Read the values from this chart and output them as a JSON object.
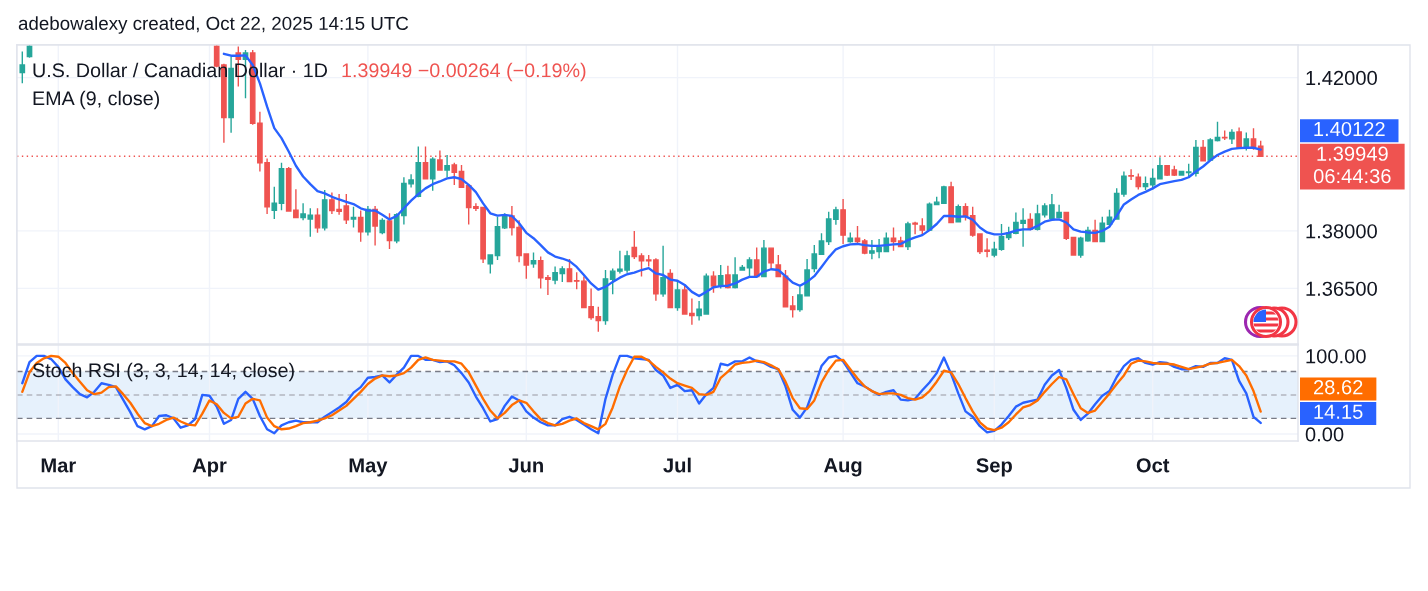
{
  "chart_data": [
    {
      "type": "candlestick",
      "title": "U.S. Dollar / Canadian Dollar · 1D",
      "subtitle": "1.39949 −0.00264 (−0.19%)",
      "annotations": [
        "adebowalexy created, Oct 22, 2025 14:15 UTC",
        "EMA (9, close)",
        "1.40122"
      ],
      "categories": [
        null,
        null,
        null,
        null,
        null,
        null,
        null,
        null,
        null,
        null,
        null,
        null,
        null,
        null,
        null,
        null,
        null,
        null,
        null,
        null,
        null,
        null,
        null,
        null,
        null,
        null,
        null,
        null,
        null,
        null,
        null,
        null,
        null,
        null,
        null,
        null,
        null,
        null,
        null,
        null,
        null,
        null,
        null,
        null,
        null,
        null,
        null,
        null,
        null,
        null,
        null,
        null,
        null,
        null,
        null,
        null,
        null,
        null,
        null,
        null,
        null,
        null,
        null,
        null,
        null,
        null,
        null,
        null,
        null,
        null,
        null,
        null,
        null,
        null,
        null,
        null,
        null,
        null,
        null,
        null,
        null,
        null,
        null,
        null,
        null,
        null,
        null,
        null,
        null,
        null,
        null,
        null,
        null,
        null,
        null,
        null,
        null,
        null,
        null,
        null,
        null,
        null,
        null,
        null,
        null,
        null,
        null,
        null,
        null,
        null,
        null,
        null,
        null,
        null,
        null,
        null,
        null,
        null,
        null,
        null,
        null,
        null,
        null,
        null,
        null,
        null,
        null,
        null,
        null,
        null,
        null,
        null,
        null,
        null,
        null,
        null,
        null,
        null,
        null,
        null,
        null,
        null,
        null,
        null,
        null,
        null,
        null,
        null,
        null,
        null,
        null,
        null,
        null,
        null,
        null,
        null,
        null,
        null,
        null,
        null,
        null,
        null,
        null,
        null,
        null,
        null,
        null,
        null,
        null,
        null,
        null,
        null,
        null
      ],
      "series": [
        {
          "type": "candlestick",
          "ohlc": [
            [
              1.4213,
              1.4268,
              1.4185,
              1.4233
            ],
            [
              1.4255,
              1.4284,
              1.4252,
              1.4281
            ],
            null,
            null,
            null,
            null,
            null,
            null,
            null,
            null,
            null,
            null,
            null,
            null,
            null,
            null,
            null,
            null,
            null,
            null,
            null,
            null,
            null,
            null,
            null,
            null,
            null,
            [
              1.4281,
              1.4284,
              1.4227,
              1.423
            ],
            [
              1.4233,
              1.4236,
              1.403,
              1.4096
            ],
            [
              1.4096,
              1.4255,
              1.4056,
              1.4224
            ],
            [
              1.4264,
              1.4281,
              1.4177,
              1.4248
            ],
            [
              1.4248,
              1.4272,
              1.4146,
              1.4264
            ],
            [
              1.4264,
              1.4272,
              1.4077,
              1.4081
            ],
            [
              1.4081,
              1.4111,
              1.3955,
              1.3978
            ],
            [
              1.3978,
              1.3989,
              1.3844,
              1.3863
            ],
            [
              1.3854,
              1.3915,
              1.3831,
              1.3872
            ],
            [
              1.3872,
              1.3978,
              1.3854,
              1.3962
            ],
            [
              1.3962,
              1.3967,
              1.385,
              1.3852
            ],
            [
              1.3854,
              1.3909,
              1.3833,
              1.3835
            ],
            [
              1.3835,
              1.3872,
              1.3828,
              1.3844
            ],
            [
              1.3831,
              1.3859,
              1.3785,
              1.3841
            ],
            [
              1.3841,
              1.3859,
              1.3795,
              1.3808
            ],
            [
              1.3808,
              1.3907,
              1.3801,
              1.3881
            ],
            [
              1.3881,
              1.39,
              1.3844,
              1.3853
            ],
            [
              1.3856,
              1.3896,
              1.3842,
              1.3851
            ],
            [
              1.3865,
              1.3896,
              1.3818,
              1.3829
            ],
            [
              1.3831,
              1.3863,
              1.3809,
              1.3835
            ],
            [
              1.3835,
              1.3853,
              1.3772,
              1.3798
            ],
            [
              1.3798,
              1.3865,
              1.3788,
              1.3856
            ],
            [
              1.3856,
              1.3865,
              1.3762,
              1.3813
            ],
            [
              1.3796,
              1.3833,
              1.3791,
              1.3827
            ],
            [
              1.3826,
              1.3846,
              1.3753,
              1.3775
            ],
            [
              1.3774,
              1.3846,
              1.3768,
              1.3842
            ],
            [
              1.384,
              1.394,
              1.3817,
              1.3924
            ],
            [
              1.3923,
              1.3948,
              1.3913,
              1.3933
            ],
            [
              1.389,
              1.402,
              1.3888,
              1.3978
            ],
            [
              1.3978,
              1.402,
              1.3935,
              1.3936
            ],
            [
              1.3936,
              1.3992,
              1.3905,
              1.3987
            ],
            [
              1.3985,
              1.401,
              1.3957,
              1.3959
            ],
            [
              1.3959,
              1.3998,
              1.394,
              1.397
            ],
            [
              1.3972,
              1.3978,
              1.392,
              1.3953
            ],
            [
              1.3955,
              1.3972,
              1.3912,
              1.3914
            ],
            [
              1.3918,
              1.392,
              1.3817,
              1.3861
            ],
            [
              1.3863,
              1.3872,
              1.3852,
              1.3859
            ],
            [
              1.3861,
              1.3863,
              1.3716,
              1.3727
            ],
            [
              1.3714,
              1.3739,
              1.3689,
              1.3737
            ],
            [
              1.3736,
              1.3837,
              1.3724,
              1.3811
            ],
            [
              1.3808,
              1.3846,
              1.3805,
              1.384
            ],
            [
              1.3839,
              1.3865,
              1.3788,
              1.3809
            ],
            [
              1.3809,
              1.3828,
              1.3718,
              1.3736
            ],
            [
              1.374,
              1.3742,
              1.3675,
              1.3711
            ],
            [
              1.3714,
              1.3744,
              1.3704,
              1.3722
            ],
            [
              1.3722,
              1.3733,
              1.365,
              1.3678
            ],
            [
              1.3678,
              1.3685,
              1.3633,
              1.3674
            ],
            [
              1.3672,
              1.3707,
              1.3661,
              1.3691
            ],
            [
              1.3689,
              1.3708,
              1.3667,
              1.3701
            ],
            [
              1.3701,
              1.3727,
              1.3666,
              1.3668
            ],
            [
              1.367,
              1.3692,
              1.3648,
              1.3669
            ],
            [
              1.3669,
              1.3681,
              1.3598,
              1.36
            ],
            [
              1.3602,
              1.365,
              1.3568,
              1.3574
            ],
            [
              1.3576,
              1.3602,
              1.3537,
              1.3566
            ],
            [
              1.3566,
              1.3698,
              1.3555,
              1.3675
            ],
            [
              1.3674,
              1.3702,
              1.3635,
              1.3695
            ],
            [
              1.3695,
              1.3748,
              1.3689,
              1.37
            ],
            [
              1.3698,
              1.3748,
              1.3691,
              1.3735
            ],
            [
              1.3757,
              1.38,
              1.3727,
              1.3733
            ],
            [
              1.3735,
              1.3742,
              1.3681,
              1.3722
            ],
            [
              1.3724,
              1.3737,
              1.3707,
              1.3722
            ],
            [
              1.3724,
              1.3729,
              1.3618,
              1.3636
            ],
            [
              1.3636,
              1.3761,
              1.3628,
              1.3678
            ],
            [
              1.3689,
              1.37,
              1.3598,
              1.36
            ],
            [
              1.36,
              1.367,
              1.3592,
              1.3646
            ],
            [
              1.3646,
              1.3659,
              1.3581,
              1.3583
            ],
            [
              1.3585,
              1.3624,
              1.3555,
              1.3579
            ],
            [
              1.3579,
              1.3617,
              1.3566,
              1.3596
            ],
            [
              1.3583,
              1.3689,
              1.3581,
              1.3682
            ],
            [
              1.3682,
              1.3695,
              1.3639,
              1.3656
            ],
            [
              1.3656,
              1.3711,
              1.365,
              1.3683
            ],
            [
              1.3685,
              1.3709,
              1.365,
              1.3652
            ],
            [
              1.3652,
              1.3731,
              1.365,
              1.3685
            ],
            [
              1.3698,
              1.3711,
              1.3696,
              1.3705
            ],
            [
              1.3704,
              1.3731,
              1.3678,
              1.3724
            ],
            [
              1.3724,
              1.3757,
              1.3679,
              1.3681
            ],
            [
              1.3681,
              1.3776,
              1.3679,
              1.3755
            ],
            [
              1.3755,
              1.3757,
              1.3698,
              1.3717
            ],
            [
              1.3711,
              1.3737,
              1.368,
              1.3681
            ],
            [
              1.3682,
              1.3698,
              1.3601,
              1.3602
            ],
            [
              1.3604,
              1.363,
              1.3574,
              1.3595
            ],
            [
              1.3595,
              1.3655,
              1.3589,
              1.3633
            ],
            [
              1.3631,
              1.3727,
              1.363,
              1.3698
            ],
            [
              1.3702,
              1.3763,
              1.3692,
              1.374
            ],
            [
              1.3739,
              1.3794,
              1.3738,
              1.3774
            ],
            [
              1.3772,
              1.385,
              1.3763,
              1.3831
            ],
            [
              1.383,
              1.3863,
              1.3816,
              1.3855
            ],
            [
              1.3855,
              1.3883,
              1.3766,
              1.3789
            ],
            [
              1.3772,
              1.3796,
              1.3769,
              1.3781
            ],
            [
              1.3781,
              1.3813,
              1.3766,
              1.3772
            ],
            [
              1.3774,
              1.3779,
              1.3739,
              1.3742
            ],
            [
              1.3742,
              1.3776,
              1.3726,
              1.3748
            ],
            [
              1.3746,
              1.3779,
              1.3729,
              1.3757
            ],
            [
              1.3746,
              1.3796,
              1.3745,
              1.3781
            ],
            [
              1.3781,
              1.3809,
              1.3748,
              1.3772
            ],
            [
              1.3774,
              1.3785,
              1.3758,
              1.3759
            ],
            [
              1.3759,
              1.3824,
              1.375,
              1.3818
            ],
            [
              1.382,
              1.3824,
              1.3791,
              1.3818
            ],
            [
              1.3813,
              1.3833,
              1.3789,
              1.3802
            ],
            [
              1.3802,
              1.3874,
              1.3801,
              1.387
            ],
            [
              1.3869,
              1.3889,
              1.3868,
              1.3875
            ],
            [
              1.3872,
              1.3918,
              1.3871,
              1.3915
            ],
            [
              1.3915,
              1.3928,
              1.382,
              1.3822
            ],
            [
              1.3824,
              1.3869,
              1.3823,
              1.3863
            ],
            [
              1.3863,
              1.3872,
              1.3827,
              1.3839
            ],
            [
              1.384,
              1.3863,
              1.3785,
              1.3789
            ],
            [
              1.3792,
              1.3794,
              1.374,
              1.3746
            ],
            [
              1.375,
              1.3781,
              1.3731,
              1.3747
            ],
            [
              1.3737,
              1.3772,
              1.3731,
              1.3752
            ],
            [
              1.3752,
              1.3818,
              1.3748,
              1.3785
            ],
            [
              1.3783,
              1.3811,
              1.3776,
              1.3794
            ],
            [
              1.3794,
              1.3848,
              1.3791,
              1.3822
            ],
            [
              1.382,
              1.3859,
              1.3759,
              1.3827
            ],
            [
              1.383,
              1.3846,
              1.3802,
              1.3804
            ],
            [
              1.3804,
              1.3868,
              1.3801,
              1.3844
            ],
            [
              1.3842,
              1.3872,
              1.3835,
              1.3865
            ],
            [
              1.3833,
              1.3896,
              1.3831,
              1.3868
            ],
            [
              1.3835,
              1.3868,
              1.3833,
              1.3848
            ],
            [
              1.3848,
              1.385,
              1.3776,
              1.3781
            ],
            [
              1.3783,
              1.3785,
              1.3735,
              1.3737
            ],
            [
              1.3737,
              1.3785,
              1.373,
              1.3781
            ],
            [
              1.3774,
              1.3811,
              1.3772,
              1.3801
            ],
            [
              1.3801,
              1.3829,
              1.3771,
              1.3772
            ],
            [
              1.3772,
              1.3837,
              1.3771,
              1.382
            ],
            [
              1.3817,
              1.3855,
              1.3811,
              1.3836
            ],
            [
              1.3831,
              1.3911,
              1.3829,
              1.3898
            ],
            [
              1.3896,
              1.3955,
              1.3889,
              1.3943
            ],
            [
              1.3944,
              1.3961,
              1.3933,
              1.3943
            ],
            [
              1.394,
              1.395,
              1.3908,
              1.3916
            ],
            [
              1.3916,
              1.3942,
              1.3907,
              1.3923
            ],
            [
              1.392,
              1.3963,
              1.3908,
              1.3937
            ],
            [
              1.3936,
              1.3992,
              1.3935,
              1.397
            ],
            [
              1.397,
              1.3972,
              1.3943,
              1.3946
            ],
            [
              1.3959,
              1.397,
              1.3943,
              1.3946
            ],
            [
              1.3946,
              1.3957,
              1.3944,
              1.3955
            ],
            [
              1.3952,
              1.3975,
              1.3942,
              1.3954
            ],
            [
              1.395,
              1.4037,
              1.3942,
              1.4018
            ],
            [
              1.4018,
              1.4037,
              1.3981,
              1.3983
            ],
            [
              1.3985,
              1.4042,
              1.3983,
              1.4037
            ],
            [
              1.4036,
              1.4085,
              1.4033,
              1.4044
            ],
            [
              1.4044,
              1.4062,
              1.4037,
              1.4043
            ],
            [
              1.404,
              1.4065,
              1.4027,
              1.4057
            ],
            [
              1.4058,
              1.407,
              1.4016,
              1.4018
            ],
            [
              1.4016,
              1.4057,
              1.401,
              1.404
            ],
            [
              1.404,
              1.4068,
              1.4012,
              1.4021
            ],
            [
              1.4021,
              1.4035,
              1.3994,
              1.39949
            ]
          ],
          "colors": [
            "#26a69a",
            "#26a69a",
            null,
            null,
            null,
            null,
            null,
            null,
            null,
            null,
            null,
            null,
            null,
            null,
            null,
            null,
            null,
            null,
            null,
            null,
            null,
            null,
            null,
            null,
            null,
            null,
            null,
            "#ef5350",
            "#ef5350",
            "#26a69a",
            "#ef5350",
            "#26a69a",
            "#ef5350",
            "#ef5350",
            "#ef5350",
            "#26a69a",
            "#26a69a",
            "#ef5350",
            "#ef5350",
            "#26a69a",
            "#26a69a",
            "#ef5350",
            "#26a69a",
            "#ef5350",
            "#ef5350",
            "#ef5350",
            "#26a69a",
            "#ef5350",
            "#26a69a",
            "#ef5350",
            "#26a69a",
            "#ef5350",
            "#26a69a",
            "#26a69a",
            "#26a69a",
            "#26a69a",
            "#ef5350",
            "#26a69a",
            "#ef5350",
            "#26a69a",
            "#ef5350",
            "#ef5350",
            "#ef5350",
            "#ef5350",
            "#ef5350",
            "#26a69a",
            "#26a69a",
            "#26a69a",
            "#ef5350",
            "#ef5350",
            "#ef5350",
            "#26a69a",
            "#ef5350",
            "#ef5350",
            "#26a69a",
            "#26a69a",
            "#ef5350",
            "#ef5350",
            "#ef5350",
            "#ef5350",
            "#ef5350",
            "#26a69a",
            "#26a69a",
            "#26a69a",
            "#26a69a",
            "#ef5350",
            "#ef5350",
            "#ef5350",
            "#ef5350",
            "#26a69a",
            "#ef5350",
            "#26a69a",
            "#ef5350",
            "#ef5350",
            "#26a69a",
            "#26a69a",
            "#ef5350",
            "#26a69a",
            "#ef5350",
            "#26a69a",
            "#26a69a",
            "#26a69a",
            "#ef5350",
            "#26a69a",
            "#ef5350",
            "#ef5350",
            "#ef5350",
            "#ef5350",
            "#26a69a",
            "#26a69a",
            "#26a69a",
            "#26a69a",
            "#26a69a",
            "#26a69a",
            "#ef5350",
            "#26a69a",
            "#ef5350",
            "#ef5350",
            "#26a69a",
            "#26a69a",
            "#26a69a",
            "#ef5350",
            "#ef5350",
            "#26a69a",
            "#ef5350",
            "#ef5350",
            "#26a69a",
            "#26a69a",
            "#26a69a",
            "#ef5350",
            "#26a69a",
            "#ef5350",
            "#ef5350",
            "#ef5350",
            "#ef5350",
            "#26a69a",
            "#26a69a",
            "#26a69a",
            "#26a69a",
            "#26a69a",
            "#ef5350",
            "#26a69a",
            "#26a69a",
            "#26a69a",
            "#26a69a",
            "#ef5350",
            "#ef5350",
            "#26a69a",
            "#26a69a",
            "#ef5350",
            "#26a69a",
            "#26a69a",
            "#26a69a",
            "#26a69a",
            "#ef5350",
            "#ef5350",
            "#26a69a",
            "#26a69a",
            "#26a69a",
            "#ef5350",
            "#ef5350",
            "#26a69a",
            "#26a69a",
            "#26a69a",
            "#ef5350",
            "#26a69a",
            "#26a69a",
            "#ef5350",
            "#26a69a",
            "#ef5350",
            "#26a69a",
            "#ef5350",
            "#ef5350"
          ]
        },
        {
          "type": "line",
          "color": "#2962ff",
          "values": [
            null,
            null,
            null,
            null,
            null,
            null,
            null,
            null,
            null,
            null,
            null,
            null,
            null,
            null,
            null,
            null,
            null,
            null,
            null,
            null,
            null,
            null,
            null,
            null,
            null,
            null,
            null,
            null,
            1.4262,
            1.4257,
            1.4257,
            1.4258,
            1.4233,
            1.4185,
            1.4124,
            1.4068,
            1.4042,
            1.4007,
            1.397,
            1.3942,
            1.3922,
            1.3904,
            1.3898,
            1.3889,
            1.3882,
            1.3876,
            1.387,
            1.3859,
            1.3853,
            1.3853,
            1.3842,
            1.383,
            1.3839,
            1.3859,
            1.3879,
            1.3896,
            1.3911,
            1.3922,
            1.3929,
            1.3937,
            1.394,
            1.3935,
            1.392,
            1.3901,
            1.3872,
            1.3846,
            1.384,
            1.3842,
            1.3839,
            1.382,
            1.3795,
            1.3781,
            1.3763,
            1.3744,
            1.3733,
            1.3728,
            1.3721,
            1.3706,
            1.3685,
            1.3663,
            1.3647,
            1.3654,
            1.3667,
            1.3678,
            1.3687,
            1.3691,
            1.3698,
            1.3703,
            1.3689,
            1.3685,
            1.3673,
            1.367,
            1.3659,
            1.3641,
            1.363,
            1.3641,
            1.3653,
            1.3656,
            1.3657,
            1.3663,
            1.3673,
            1.368,
            1.368,
            1.3694,
            1.37,
            1.3698,
            1.3682,
            1.3665,
            1.3657,
            1.3667,
            1.3682,
            1.3706,
            1.3731,
            1.3752,
            1.376,
            1.3765,
            1.3766,
            1.3763,
            1.3761,
            1.3761,
            1.3763,
            1.3765,
            1.3766,
            1.3776,
            1.3783,
            1.3789,
            1.3802,
            1.3818,
            1.3839,
            1.3839,
            1.3837,
            1.3838,
            1.3829,
            1.3809,
            1.3796,
            1.3791,
            1.3791,
            1.3795,
            1.3801,
            1.3804,
            1.3804,
            1.3813,
            1.3824,
            1.3829,
            1.383,
            1.3822,
            1.3804,
            1.3798,
            1.3796,
            1.3795,
            1.38,
            1.3811,
            1.3839,
            1.3869,
            1.3882,
            1.3894,
            1.3902,
            1.3911,
            1.3922,
            1.3926,
            1.393,
            1.3933,
            1.394,
            1.3955,
            1.3968,
            1.3984,
            1.3998,
            1.4007,
            1.4014,
            1.4016,
            1.4017,
            1.4017,
            1.40122
          ]
        }
      ],
      "ylim": [
        1.3505,
        1.4285
      ],
      "yticks": [
        {
          "value": 1.365,
          "label": "1.36500"
        },
        {
          "value": 1.38,
          "label": "1.38000"
        },
        {
          "value": 1.42,
          "label": "1.42000"
        }
      ],
      "ref_lines": [
        {
          "axis": "y",
          "value": 1.39949,
          "label": "1.39949\n06:44:36",
          "color": "#ef5350",
          "line_style": "dotted"
        }
      ],
      "grid": true,
      "tick_labels": "y"
    },
    {
      "type": "line",
      "title": "Stoch RSI (3, 3, 14, 14, close)",
      "annotations": [
        "14.15",
        "28.62"
      ],
      "categories": [
        null,
        null,
        null,
        null,
        null,
        "Mar",
        null,
        null,
        null,
        null,
        null,
        null,
        null,
        null,
        null,
        null,
        null,
        null,
        null,
        null,
        null,
        null,
        null,
        null,
        null,
        null,
        "Apr",
        null,
        null,
        null,
        null,
        null,
        null,
        null,
        null,
        null,
        null,
        null,
        null,
        null,
        null,
        null,
        null,
        null,
        null,
        null,
        null,
        null,
        "May",
        null,
        null,
        null,
        null,
        null,
        null,
        null,
        null,
        null,
        null,
        null,
        null,
        null,
        null,
        null,
        null,
        null,
        null,
        null,
        null,
        null,
        "Jun",
        null,
        null,
        null,
        null,
        null,
        null,
        null,
        null,
        null,
        null,
        null,
        null,
        null,
        null,
        null,
        null,
        null,
        null,
        null,
        null,
        "Jul",
        null,
        null,
        null,
        null,
        null,
        null,
        null,
        null,
        null,
        null,
        null,
        null,
        null,
        null,
        null,
        null,
        null,
        null,
        null,
        null,
        null,
        null,
        "Aug",
        null,
        null,
        null,
        null,
        null,
        null,
        null,
        null,
        null,
        null,
        null,
        null,
        null,
        null,
        null,
        null,
        null,
        null,
        null,
        null,
        "Sep",
        null,
        null,
        null,
        null,
        null,
        null,
        null,
        null,
        null,
        null,
        null,
        null,
        null,
        null,
        null,
        null,
        null,
        null,
        null,
        null,
        null,
        "Oct",
        null,
        null,
        null,
        null,
        null,
        null,
        null,
        null,
        null,
        null,
        null,
        null,
        null,
        null,
        null
      ],
      "series": [
        {
          "color": "#2962ff",
          "values": [
            65,
            92,
            100,
            100,
            96,
            86,
            70,
            60,
            51,
            47,
            54,
            65,
            63,
            60,
            44,
            28,
            10,
            6,
            10,
            23,
            24,
            20,
            8,
            11,
            19,
            50,
            49,
            35,
            13,
            18,
            45,
            54,
            45,
            23,
            6,
            1,
            11,
            15,
            17,
            15,
            15,
            15,
            22,
            28,
            34,
            41,
            53,
            60,
            72,
            73,
            75,
            66,
            76,
            85,
            100,
            100,
            95,
            95,
            92,
            93,
            88,
            78,
            66,
            48,
            33,
            16,
            19,
            36,
            48,
            43,
            29,
            21,
            15,
            11,
            11,
            19,
            22,
            18,
            12,
            6,
            1,
            45,
            76,
            100,
            100,
            97,
            96,
            95,
            82,
            75,
            59,
            63,
            55,
            56,
            39,
            51,
            59,
            90,
            88,
            93,
            93,
            98,
            93,
            91,
            86,
            83,
            61,
            31,
            21,
            34,
            60,
            87,
            98,
            100,
            93,
            79,
            65,
            61,
            55,
            50,
            54,
            56,
            44,
            43,
            45,
            56,
            66,
            78,
            98,
            77,
            52,
            29,
            22,
            10,
            2,
            4,
            12,
            23,
            35,
            40,
            42,
            44,
            63,
            75,
            82,
            59,
            31,
            18,
            26,
            38,
            49,
            55,
            73,
            87,
            95,
            97,
            91,
            89,
            92,
            91,
            86,
            83,
            83,
            87,
            86,
            91,
            91,
            97,
            95,
            68,
            52,
            22,
            14.15
          ]
        },
        {
          "color": "#ff6d00",
          "values": [
            54,
            79,
            91,
            97,
            100,
            99,
            91,
            78,
            67,
            56,
            51,
            53,
            60,
            61,
            51,
            40,
            26,
            14,
            10,
            13,
            18,
            21,
            16,
            12,
            11,
            26,
            43,
            38,
            27,
            20,
            22,
            39,
            45,
            43,
            21,
            10,
            6,
            7,
            10,
            14,
            15,
            17,
            20,
            24,
            30,
            36,
            45,
            54,
            64,
            71,
            75,
            74,
            75,
            78,
            85,
            95,
            98,
            95,
            94,
            93,
            93,
            90,
            79,
            62,
            45,
            30,
            20,
            27,
            37,
            43,
            40,
            29,
            19,
            14,
            11,
            13,
            17,
            20,
            14,
            10,
            6,
            13,
            34,
            61,
            82,
            99,
            99,
            94,
            86,
            79,
            71,
            65,
            62,
            59,
            51,
            50,
            54,
            72,
            80,
            89,
            91,
            92,
            94,
            92,
            88,
            83,
            67,
            46,
            33,
            32,
            43,
            66,
            82,
            94,
            95,
            83,
            71,
            61,
            55,
            51,
            52,
            52,
            50,
            46,
            44,
            47,
            55,
            67,
            81,
            79,
            64,
            46,
            29,
            15,
            7,
            5,
            8,
            15,
            25,
            34,
            37,
            43,
            54,
            64,
            73,
            70,
            51,
            33,
            27,
            30,
            41,
            52,
            64,
            75,
            90,
            94,
            93,
            91,
            90,
            90,
            89,
            86,
            83,
            85,
            87,
            90,
            91,
            93,
            95,
            87,
            75,
            55,
            28.62
          ]
        }
      ],
      "ylim": [
        -9,
        114
      ],
      "yticks": [
        {
          "value": 0,
          "label": "0.00"
        },
        {
          "value": 100,
          "label": "100.00"
        }
      ],
      "bands": [
        {
          "axis": "y",
          "from": 20,
          "to": 80,
          "color": "#e6f1fc"
        }
      ],
      "ref_lines": [
        {
          "axis": "y",
          "value": 80,
          "color": "#787b86",
          "line_style": "dashed"
        },
        {
          "axis": "y",
          "value": 50,
          "color": "#b2b5be",
          "line_style": "dashed"
        },
        {
          "axis": "y",
          "value": 20,
          "color": "#787b86",
          "line_style": "dashed"
        }
      ],
      "grid": true
    }
  ]
}
